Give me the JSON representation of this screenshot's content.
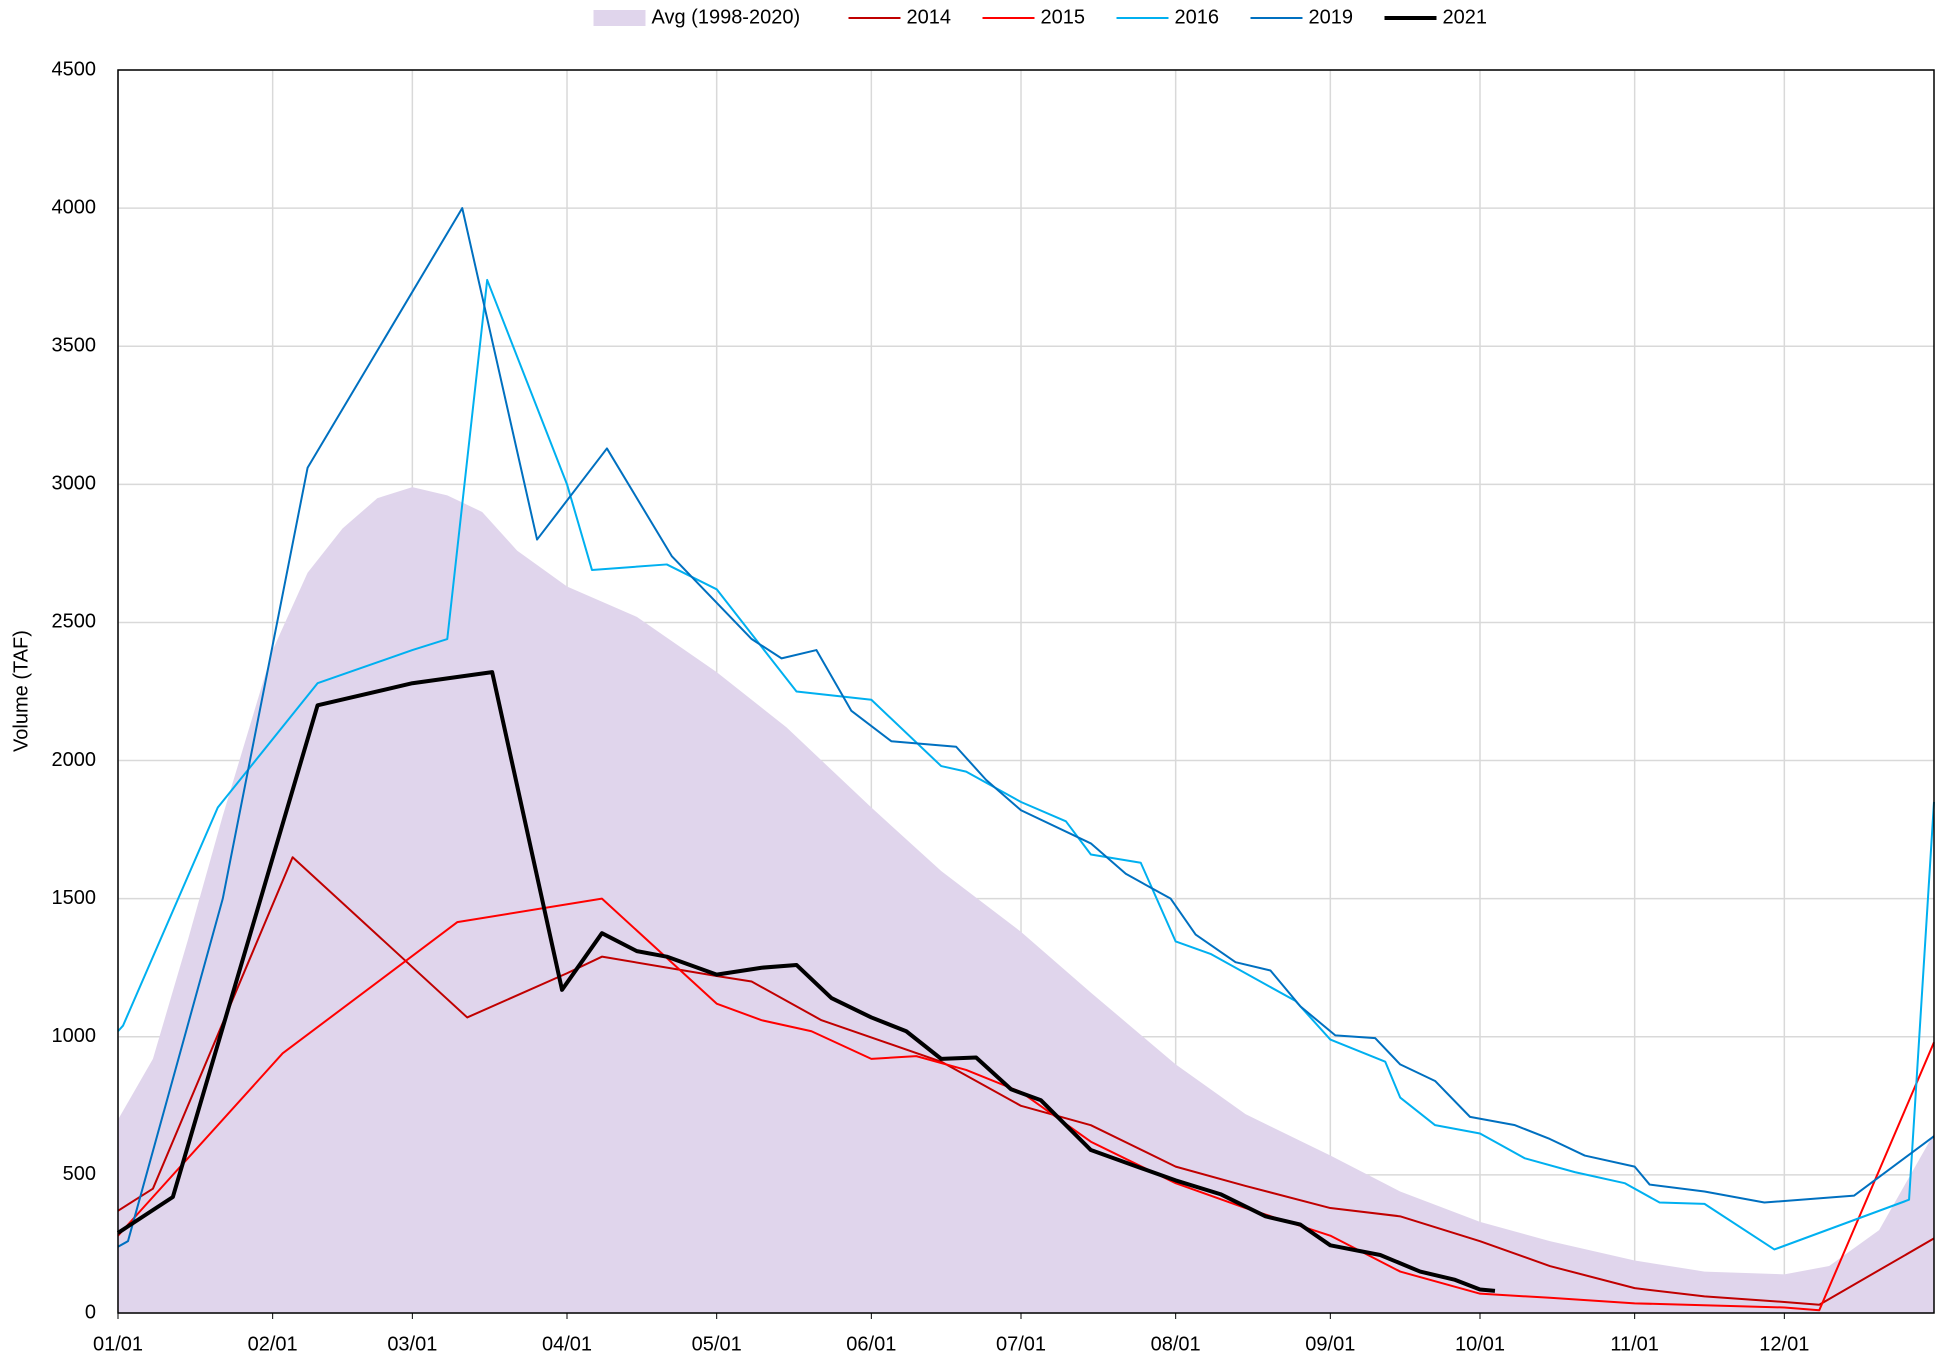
{
  "chart_data": {
    "type": "line",
    "y_label": "Volume (TAF)",
    "xlim": [
      "01/01",
      "12/31"
    ],
    "xticks": [
      "01/01",
      "02/01",
      "03/01",
      "04/01",
      "05/01",
      "06/01",
      "07/01",
      "08/01",
      "09/01",
      "10/01",
      "11/01",
      "12/01"
    ],
    "ylim": [
      0,
      4500
    ],
    "yticks": [
      0,
      500,
      1000,
      1500,
      2000,
      2500,
      3000,
      3500,
      4000,
      4500
    ],
    "grid": true,
    "legend": "top",
    "series": [
      {
        "name": "Avg (1998-2020)",
        "type": "area",
        "color": "#e0d5ec",
        "x": [
          "01/01",
          "01/08",
          "01/15",
          "01/22",
          "02/01",
          "02/08",
          "02/15",
          "02/22",
          "03/01",
          "03/08",
          "03/15",
          "03/22",
          "04/01",
          "04/15",
          "05/01",
          "05/15",
          "06/01",
          "06/15",
          "07/01",
          "07/15",
          "08/01",
          "08/15",
          "09/01",
          "09/15",
          "10/01",
          "10/15",
          "11/01",
          "11/15",
          "12/01",
          "12/10",
          "12/20",
          "12/31"
        ],
        "values": [
          700,
          920,
          1350,
          1800,
          2400,
          2680,
          2840,
          2950,
          2990,
          2960,
          2900,
          2760,
          2630,
          2520,
          2320,
          2120,
          1830,
          1600,
          1380,
          1160,
          900,
          720,
          570,
          440,
          330,
          260,
          190,
          150,
          140,
          170,
          300,
          650
        ]
      },
      {
        "name": "2014",
        "type": "line",
        "color": "#c00000",
        "line_width": 2,
        "x": [
          "01/01",
          "01/08",
          "02/05",
          "03/12",
          "04/01",
          "04/08",
          "05/01",
          "05/08",
          "05/22",
          "06/15",
          "07/01",
          "07/15",
          "08/01",
          "08/15",
          "09/01",
          "09/15",
          "10/01",
          "10/15",
          "11/01",
          "11/15",
          "12/01",
          "12/08",
          "12/31"
        ],
        "values": [
          370,
          450,
          1650,
          1070,
          1230,
          1290,
          1220,
          1200,
          1060,
          910,
          750,
          680,
          530,
          460,
          380,
          350,
          260,
          170,
          90,
          60,
          40,
          30,
          270
        ]
      },
      {
        "name": "2015",
        "type": "line",
        "color": "#ff0000",
        "line_width": 2,
        "x": [
          "01/01",
          "02/03",
          "03/10",
          "04/08",
          "05/01",
          "05/10",
          "05/20",
          "06/01",
          "06/10",
          "06/20",
          "07/01",
          "07/15",
          "08/01",
          "08/15",
          "09/01",
          "09/15",
          "10/01",
          "10/15",
          "11/01",
          "12/01",
          "12/08",
          "12/31"
        ],
        "values": [
          280,
          940,
          1415,
          1500,
          1120,
          1060,
          1020,
          920,
          930,
          880,
          800,
          620,
          470,
          380,
          280,
          150,
          70,
          55,
          35,
          20,
          10,
          980
        ]
      },
      {
        "name": "2016",
        "type": "line",
        "color": "#00b0f0",
        "line_width": 2,
        "x": [
          "01/01",
          "01/02",
          "01/21",
          "02/10",
          "03/01",
          "03/08",
          "03/16",
          "04/01",
          "04/06",
          "04/21",
          "05/01",
          "05/17",
          "06/01",
          "06/15",
          "06/20",
          "07/01",
          "07/10",
          "07/15",
          "07/25",
          "08/01",
          "08/08",
          "08/25",
          "09/01",
          "09/12",
          "09/15",
          "09/22",
          "10/01",
          "10/10",
          "10/20",
          "10/30",
          "11/06",
          "11/15",
          "11/29",
          "12/26",
          "12/31"
        ],
        "values": [
          1020,
          1040,
          1830,
          2280,
          2400,
          2440,
          3740,
          3000,
          2690,
          2710,
          2620,
          2250,
          2220,
          1980,
          1960,
          1850,
          1780,
          1660,
          1630,
          1345,
          1300,
          1130,
          990,
          910,
          780,
          680,
          650,
          560,
          510,
          470,
          400,
          395,
          230,
          410,
          1850
        ]
      },
      {
        "name": "2019",
        "type": "line",
        "color": "#0070c0",
        "line_width": 2,
        "x": [
          "01/01",
          "01/03",
          "01/22",
          "02/08",
          "03/11",
          "03/26",
          "04/09",
          "04/22",
          "05/08",
          "05/14",
          "05/21",
          "05/28",
          "06/05",
          "06/18",
          "06/24",
          "07/01",
          "07/15",
          "07/22",
          "07/31",
          "08/05",
          "08/13",
          "08/20",
          "08/26",
          "09/02",
          "09/10",
          "09/15",
          "09/22",
          "09/29",
          "10/08",
          "10/15",
          "10/22",
          "11/01",
          "11/04",
          "11/15",
          "11/27",
          "12/15",
          "12/31"
        ],
        "values": [
          240,
          260,
          1500,
          3060,
          4000,
          2800,
          3130,
          2740,
          2440,
          2370,
          2400,
          2180,
          2070,
          2050,
          1930,
          1820,
          1700,
          1590,
          1500,
          1370,
          1270,
          1240,
          1110,
          1005,
          995,
          900,
          840,
          710,
          680,
          630,
          570,
          530,
          465,
          440,
          400,
          425,
          640
        ]
      },
      {
        "name": "2021",
        "type": "line",
        "color": "#000000",
        "line_width": 4,
        "x": [
          "01/01",
          "01/12",
          "02/10",
          "03/01",
          "03/17",
          "03/31",
          "04/08",
          "04/15",
          "04/21",
          "05/01",
          "05/10",
          "05/17",
          "05/24",
          "06/01",
          "06/08",
          "06/15",
          "06/22",
          "06/29",
          "07/05",
          "07/15",
          "07/25",
          "08/01",
          "08/10",
          "08/19",
          "08/26",
          "09/01",
          "09/11",
          "09/19",
          "09/26",
          "10/01",
          "10/04"
        ],
        "values": [
          290,
          420,
          2200,
          2280,
          2320,
          1170,
          1375,
          1310,
          1290,
          1225,
          1250,
          1260,
          1140,
          1070,
          1020,
          920,
          925,
          810,
          770,
          590,
          525,
          480,
          430,
          350,
          320,
          245,
          210,
          150,
          120,
          85,
          80
        ]
      }
    ]
  }
}
